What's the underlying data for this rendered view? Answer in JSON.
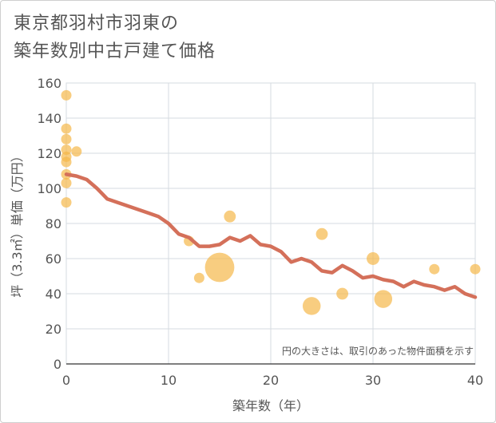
{
  "title": {
    "line1": "東京都羽村市羽東の",
    "line2": "築年数別中古戸建て価格"
  },
  "chart_data": {
    "type": "scatter",
    "xlabel": "築年数（年）",
    "ylabel": "坪（3.3㎡）単価（万円）",
    "xlim": [
      0,
      40
    ],
    "ylim": [
      0,
      160
    ],
    "xticks": [
      "0",
      "10",
      "20",
      "30",
      "40"
    ],
    "yticks": [
      "0",
      "20",
      "40",
      "60",
      "80",
      "100",
      "120",
      "140",
      "160"
    ],
    "grid": true,
    "note": "円の大きさは、取引のあった物件面積を示す",
    "colors": {
      "bubble": "#f5b84a",
      "line": "#d4705a"
    },
    "bubbles": [
      {
        "x": 0,
        "y": 153,
        "size": 1
      },
      {
        "x": 0,
        "y": 134,
        "size": 1
      },
      {
        "x": 0,
        "y": 128,
        "size": 1
      },
      {
        "x": 0,
        "y": 122,
        "size": 1
      },
      {
        "x": 0,
        "y": 118,
        "size": 1
      },
      {
        "x": 0,
        "y": 115,
        "size": 1
      },
      {
        "x": 0,
        "y": 108,
        "size": 1
      },
      {
        "x": 0,
        "y": 103,
        "size": 1
      },
      {
        "x": 0,
        "y": 92,
        "size": 1
      },
      {
        "x": 1,
        "y": 121,
        "size": 1
      },
      {
        "x": 12,
        "y": 70,
        "size": 1
      },
      {
        "x": 13,
        "y": 49,
        "size": 1
      },
      {
        "x": 15,
        "y": 55,
        "size": 8
      },
      {
        "x": 16,
        "y": 84,
        "size": 1.3
      },
      {
        "x": 24,
        "y": 33,
        "size": 3
      },
      {
        "x": 25,
        "y": 74,
        "size": 1.3
      },
      {
        "x": 27,
        "y": 40,
        "size": 1.3
      },
      {
        "x": 30,
        "y": 60,
        "size": 1.5
      },
      {
        "x": 31,
        "y": 37,
        "size": 3
      },
      {
        "x": 36,
        "y": 54,
        "size": 1
      },
      {
        "x": 40,
        "y": 54,
        "size": 1
      }
    ],
    "trend": {
      "x": [
        0,
        1,
        2,
        3,
        4,
        5,
        6,
        7,
        8,
        9,
        10,
        11,
        12,
        13,
        14,
        15,
        16,
        17,
        18,
        19,
        20,
        21,
        22,
        23,
        24,
        25,
        26,
        27,
        28,
        29,
        30,
        31,
        32,
        33,
        34,
        35,
        36,
        37,
        38,
        39,
        40
      ],
      "y": [
        108,
        107,
        105,
        100,
        94,
        92,
        90,
        88,
        86,
        84,
        80,
        74,
        72,
        67,
        67,
        68,
        72,
        70,
        73,
        68,
        67,
        64,
        58,
        60,
        58,
        53,
        52,
        56,
        53,
        49,
        50,
        48,
        47,
        44,
        47,
        45,
        44,
        42,
        44,
        40,
        38
      ]
    }
  }
}
